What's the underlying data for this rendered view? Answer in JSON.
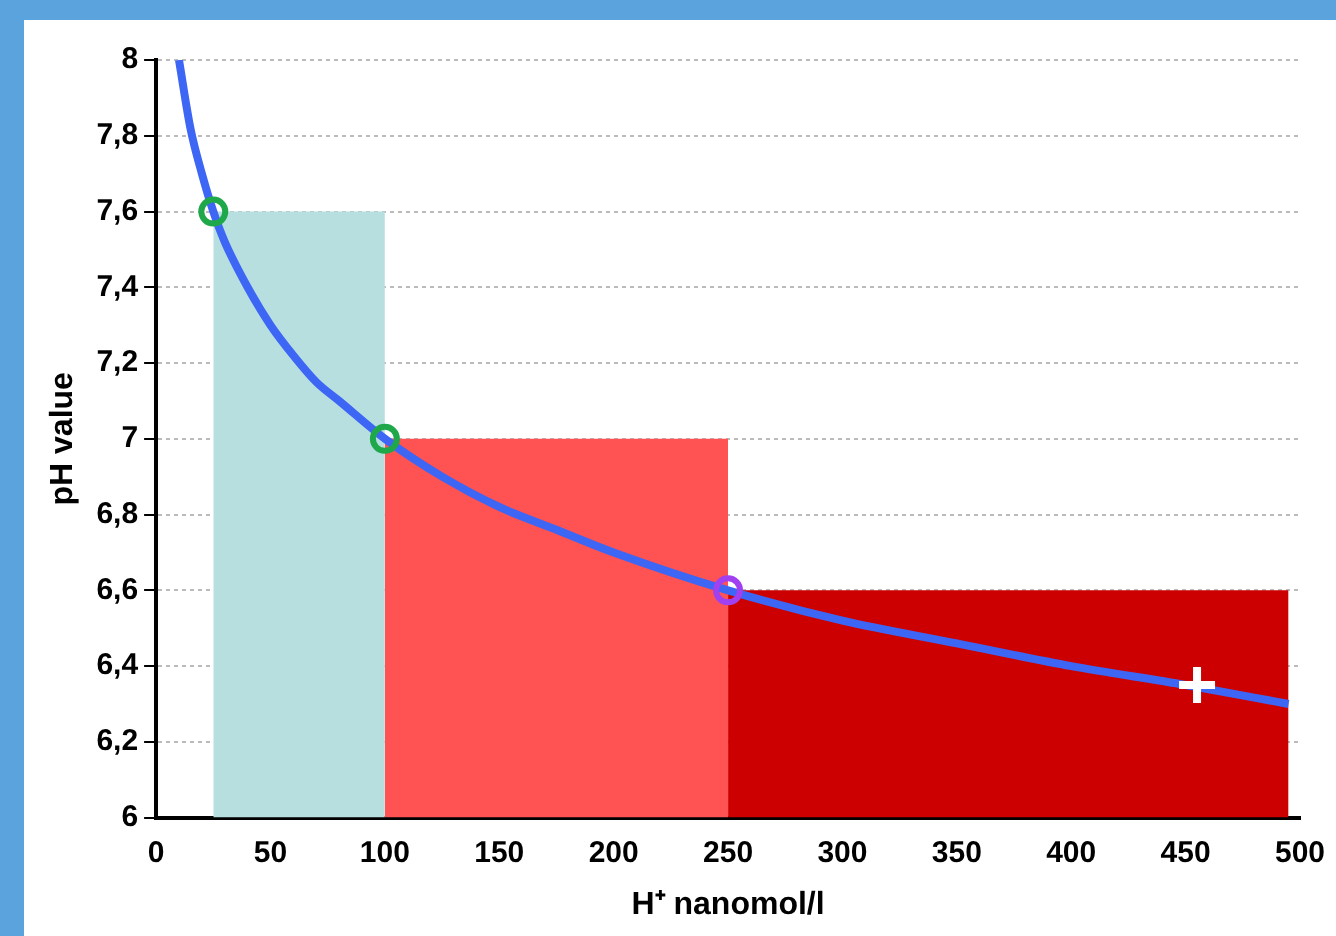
{
  "chart_data": {
    "type": "line",
    "xlabel": "H⁺ nanomol/l",
    "ylabel": "pH value",
    "xlim": [
      0,
      500
    ],
    "xticks": [
      0,
      50,
      100,
      150,
      200,
      250,
      300,
      350,
      400,
      450,
      500
    ],
    "ylim": [
      6,
      8
    ],
    "yticks": [
      6,
      {
        "value": 6.2,
        "label": "6,2"
      },
      {
        "value": 6.4,
        "label": "6,4"
      },
      {
        "value": 6.6,
        "label": "6,6"
      },
      {
        "value": 6.8,
        "label": "6,8"
      },
      7,
      {
        "value": 7.2,
        "label": "7,2"
      },
      {
        "value": 7.4,
        "label": "7,4"
      },
      {
        "value": 7.6,
        "label": "7,6"
      },
      {
        "value": 7.8,
        "label": "7,8"
      },
      8
    ],
    "grid": "y",
    "legend": false,
    "series": [
      {
        "type": "area",
        "color": "#b8dfe0",
        "x": [
          25,
          100
        ],
        "values": [
          7.6,
          7.6
        ]
      },
      {
        "type": "area",
        "color": "#ff5252",
        "x": [
          100,
          250
        ],
        "values": [
          7.0,
          7.0
        ]
      },
      {
        "type": "area",
        "color": "#cc0000",
        "x": [
          250,
          495
        ],
        "values": [
          6.6,
          6.6
        ]
      },
      {
        "color": "#3d66f5",
        "marker": "none",
        "x": [
          10,
          15,
          20,
          25,
          30,
          40,
          50,
          60,
          70,
          80,
          100,
          125,
          150,
          175,
          200,
          250,
          300,
          350,
          400,
          450,
          495
        ],
        "values": [
          8,
          7.82,
          7.7,
          7.6,
          7.52,
          7.4,
          7.3,
          7.22,
          7.15,
          7.1,
          7.0,
          6.9,
          6.82,
          6.76,
          6.7,
          6.6,
          6.52,
          6.46,
          6.4,
          6.35,
          6.3
        ]
      },
      {
        "type": "scatter",
        "color": "#1ea84a",
        "marker": "circle",
        "x": [
          25,
          100
        ],
        "values": [
          7.6,
          7.0
        ]
      },
      {
        "type": "scatter",
        "color": "#a040f0",
        "marker": "circle",
        "x": [
          250
        ],
        "values": [
          6.6
        ]
      },
      {
        "type": "scatter",
        "color": "#ffffff",
        "marker": "cross",
        "x": [
          455
        ],
        "values": [
          6.35
        ]
      }
    ]
  }
}
